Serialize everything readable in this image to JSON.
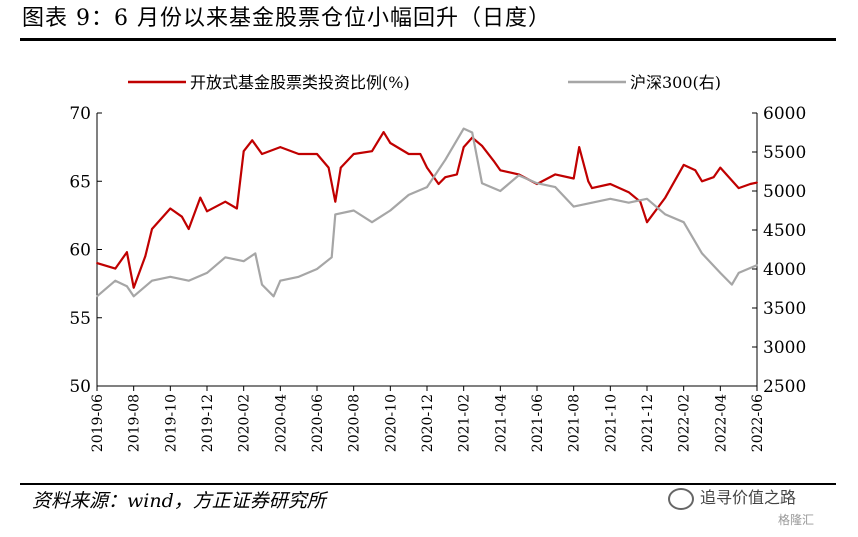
{
  "header": {
    "title": "图表 9：6 月份以来基金股票仓位小幅回升（日度）"
  },
  "footer": {
    "source": "资料来源：wind，方正证券研究所",
    "watermark": "追寻价值之路",
    "watermark2": "格隆汇"
  },
  "chart_data": {
    "type": "line",
    "title": "",
    "xlabel": "",
    "ylabel": "",
    "x_ticks": [
      "2019-06",
      "2019-08",
      "2019-10",
      "2019-12",
      "2020-02",
      "2020-04",
      "2020-06",
      "2020-08",
      "2020-10",
      "2020-12",
      "2021-02",
      "2021-04",
      "2021-06",
      "2021-08",
      "2021-10",
      "2021-12",
      "2022-02",
      "2022-04",
      "2022-06"
    ],
    "ylim_left": [
      50,
      70
    ],
    "yticks_left": [
      50,
      55,
      60,
      65,
      70
    ],
    "ylim_right": [
      2500,
      6000
    ],
    "yticks_right": [
      2500,
      3000,
      3500,
      4000,
      4500,
      5000,
      5500,
      6000
    ],
    "legend_position": "top",
    "grid": false,
    "series": [
      {
        "name": "开放式基金股票类投资比例(%)",
        "axis": "left",
        "color": "#c00000",
        "points": [
          [
            "2019-06",
            59.0
          ],
          [
            "2019-07",
            58.6
          ],
          [
            "2019-07-20",
            59.8
          ],
          [
            "2019-08",
            57.2
          ],
          [
            "2019-08-20",
            59.5
          ],
          [
            "2019-09",
            61.5
          ],
          [
            "2019-10",
            63.0
          ],
          [
            "2019-10-20",
            62.4
          ],
          [
            "2019-11",
            61.5
          ],
          [
            "2019-11-20",
            63.8
          ],
          [
            "2019-12",
            62.8
          ],
          [
            "2020-01",
            63.5
          ],
          [
            "2020-01-20",
            63.0
          ],
          [
            "2020-02",
            67.2
          ],
          [
            "2020-02-15",
            68.0
          ],
          [
            "2020-03",
            67.0
          ],
          [
            "2020-04",
            67.5
          ],
          [
            "2020-05",
            67.0
          ],
          [
            "2020-06",
            67.0
          ],
          [
            "2020-06-20",
            66.0
          ],
          [
            "2020-07",
            63.5
          ],
          [
            "2020-07-10",
            66.0
          ],
          [
            "2020-08",
            67.0
          ],
          [
            "2020-09",
            67.2
          ],
          [
            "2020-09-20",
            68.6
          ],
          [
            "2020-10",
            67.8
          ],
          [
            "2020-11",
            67.0
          ],
          [
            "2020-11-20",
            67.0
          ],
          [
            "2020-12",
            66.0
          ],
          [
            "2020-12-20",
            64.8
          ],
          [
            "2021-01",
            65.3
          ],
          [
            "2021-01-20",
            65.5
          ],
          [
            "2021-02",
            67.5
          ],
          [
            "2021-02-15",
            68.2
          ],
          [
            "2021-03",
            67.6
          ],
          [
            "2021-03-20",
            66.5
          ],
          [
            "2021-04",
            65.8
          ],
          [
            "2021-05",
            65.5
          ],
          [
            "2021-06",
            64.8
          ],
          [
            "2021-07",
            65.5
          ],
          [
            "2021-08",
            65.2
          ],
          [
            "2021-08-10",
            67.5
          ],
          [
            "2021-08-25",
            65.0
          ],
          [
            "2021-09",
            64.5
          ],
          [
            "2021-10",
            64.8
          ],
          [
            "2021-11",
            64.2
          ],
          [
            "2021-11-20",
            63.5
          ],
          [
            "2021-12",
            62.0
          ],
          [
            "2022-01",
            63.8
          ],
          [
            "2022-02",
            66.2
          ],
          [
            "2022-02-20",
            65.8
          ],
          [
            "2022-03",
            65.0
          ],
          [
            "2022-03-20",
            65.3
          ],
          [
            "2022-04",
            66.0
          ],
          [
            "2022-05",
            64.5
          ],
          [
            "2022-05-20",
            64.8
          ],
          [
            "2022-06",
            64.9
          ]
        ]
      },
      {
        "name": "沪深300(右)",
        "axis": "right",
        "color": "#a6a6a6",
        "points": [
          [
            "2019-06",
            3650
          ],
          [
            "2019-07",
            3850
          ],
          [
            "2019-07-20",
            3780
          ],
          [
            "2019-08",
            3650
          ],
          [
            "2019-09",
            3850
          ],
          [
            "2019-10",
            3900
          ],
          [
            "2019-11",
            3850
          ],
          [
            "2019-12",
            3950
          ],
          [
            "2020-01",
            4150
          ],
          [
            "2020-02",
            4100
          ],
          [
            "2020-02-20",
            4200
          ],
          [
            "2020-03",
            3800
          ],
          [
            "2020-03-20",
            3650
          ],
          [
            "2020-04",
            3850
          ],
          [
            "2020-05",
            3900
          ],
          [
            "2020-06",
            4000
          ],
          [
            "2020-06-25",
            4150
          ],
          [
            "2020-07",
            4700
          ],
          [
            "2020-08",
            4750
          ],
          [
            "2020-09",
            4600
          ],
          [
            "2020-10",
            4750
          ],
          [
            "2020-11",
            4950
          ],
          [
            "2020-12",
            5050
          ],
          [
            "2021-01",
            5400
          ],
          [
            "2021-02",
            5800
          ],
          [
            "2021-02-15",
            5750
          ],
          [
            "2021-03",
            5100
          ],
          [
            "2021-04",
            5000
          ],
          [
            "2021-05",
            5200
          ],
          [
            "2021-06",
            5100
          ],
          [
            "2021-07",
            5050
          ],
          [
            "2021-08",
            4800
          ],
          [
            "2021-09",
            4850
          ],
          [
            "2021-10",
            4900
          ],
          [
            "2021-11",
            4850
          ],
          [
            "2021-12",
            4900
          ],
          [
            "2022-01",
            4700
          ],
          [
            "2022-02",
            4600
          ],
          [
            "2022-03",
            4200
          ],
          [
            "2022-04",
            3950
          ],
          [
            "2022-04-20",
            3800
          ],
          [
            "2022-05",
            3950
          ],
          [
            "2022-06",
            4050
          ]
        ]
      }
    ]
  }
}
